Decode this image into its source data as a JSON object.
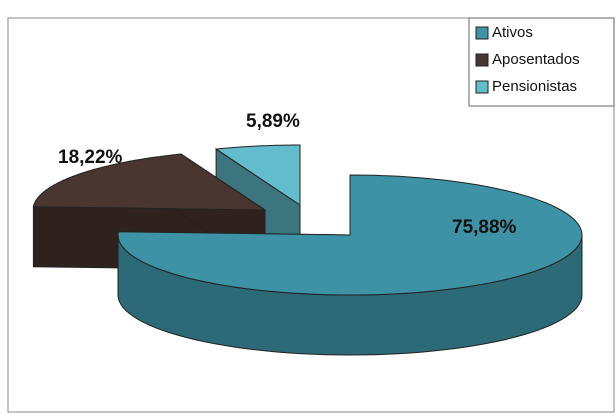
{
  "chart_data": {
    "type": "pie3d",
    "categories": [
      "Ativos",
      "Aposentados",
      "Pensionistas"
    ],
    "values": [
      75.88,
      18.22,
      5.89
    ],
    "value_labels": [
      "75,88%",
      "18,22%",
      "5,89%"
    ],
    "colors": [
      "#3d93a5",
      "#4a3630",
      "#62bccb"
    ],
    "legend": "top-right"
  }
}
